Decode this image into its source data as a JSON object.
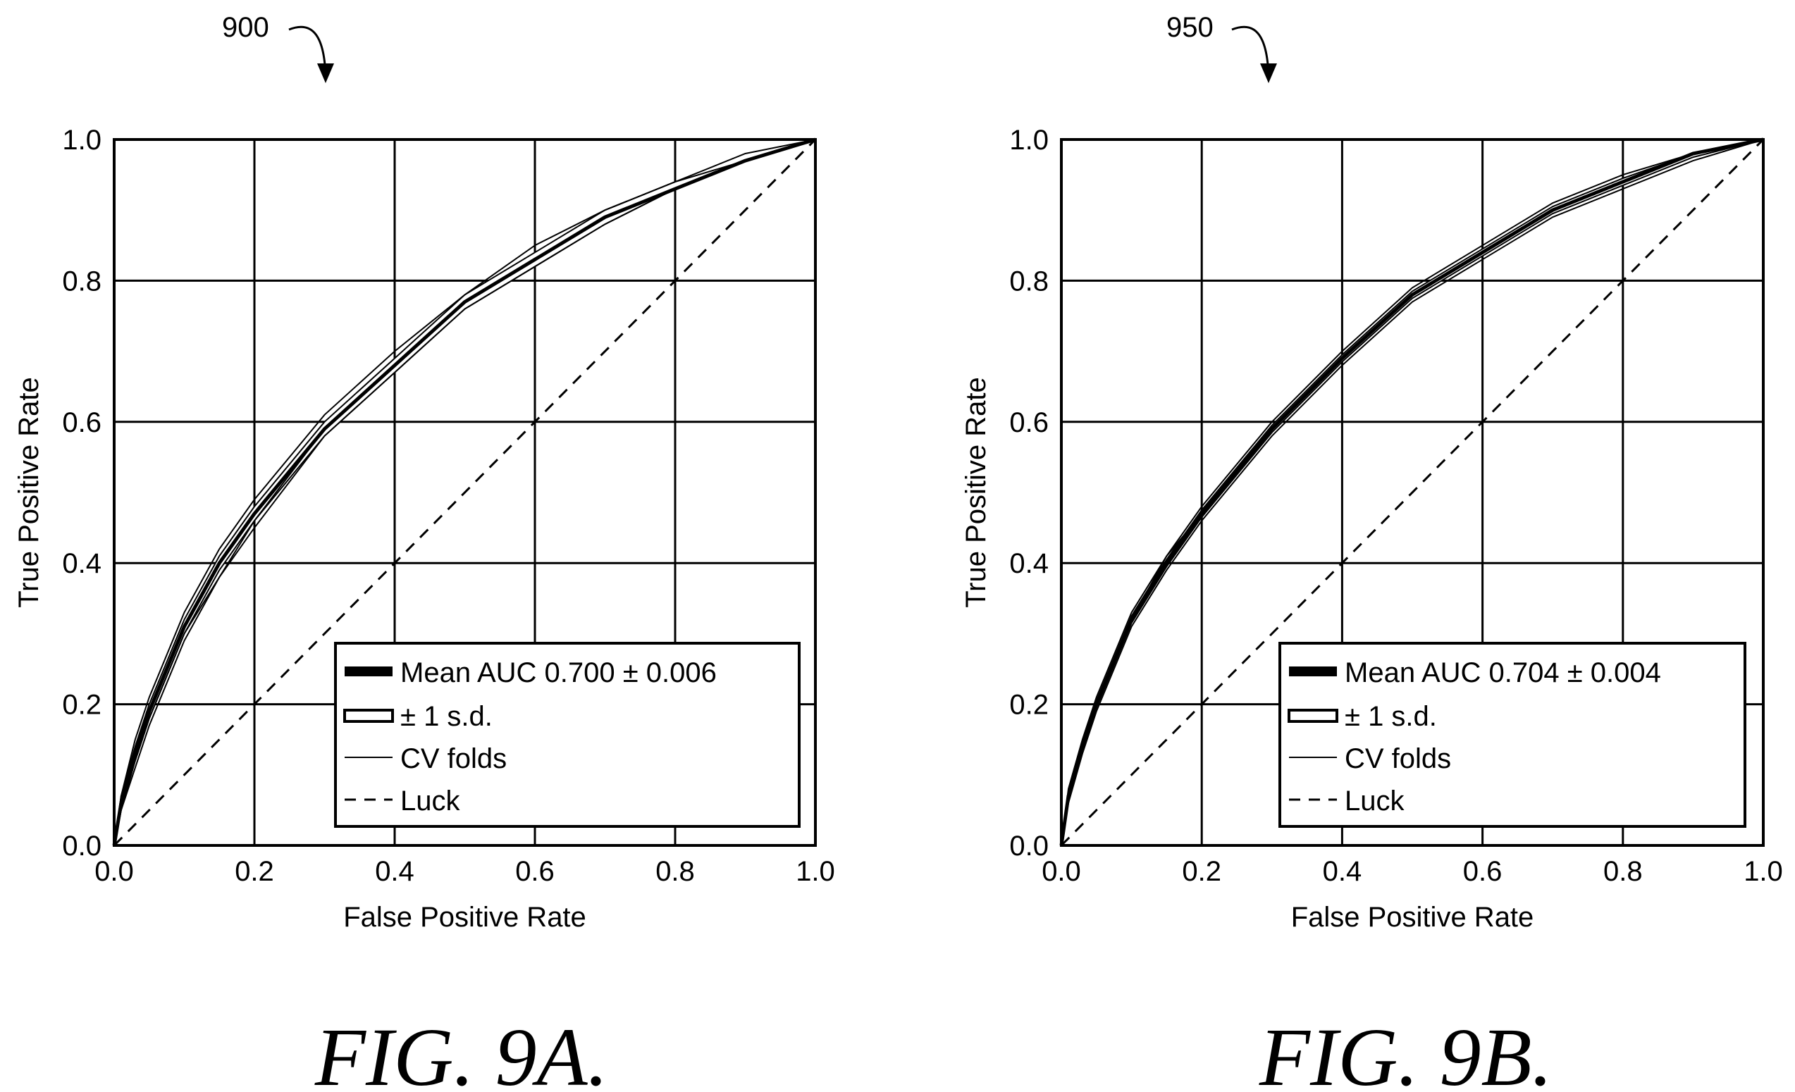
{
  "figures": [
    {
      "reference_numeral": "900",
      "caption": "FIG. 9A.",
      "legend": {
        "mean_label": "Mean AUC 0.700 ± 0.006",
        "sd_label": "± 1 s.d.",
        "folds_label": "CV folds",
        "luck_label": "Luck"
      }
    },
    {
      "reference_numeral": "950",
      "caption": "FIG. 9B.",
      "legend": {
        "mean_label": "Mean AUC 0.704 ± 0.004",
        "sd_label": "± 1 s.d.",
        "folds_label": "CV folds",
        "luck_label": "Luck"
      }
    }
  ],
  "chart_data": [
    {
      "type": "line",
      "title": "",
      "xlabel": "False Positive Rate",
      "ylabel": "True Positive Rate",
      "xlim": [
        0,
        1
      ],
      "ylim": [
        0,
        1
      ],
      "xticks": [
        "0.0",
        "0.2",
        "0.4",
        "0.6",
        "0.8",
        "1.0"
      ],
      "yticks": [
        "0.0",
        "0.2",
        "0.4",
        "0.6",
        "0.8",
        "1.0"
      ],
      "grid": true,
      "legend_position": "bottom-right",
      "line_color": "#000000",
      "series": [
        {
          "name": "Mean AUC 0.700 ± 0.006",
          "style": "thick",
          "x": [
            0.0,
            0.01,
            0.03,
            0.05,
            0.1,
            0.15,
            0.2,
            0.3,
            0.4,
            0.5,
            0.6,
            0.7,
            0.8,
            0.9,
            1.0
          ],
          "y": [
            0.0,
            0.06,
            0.13,
            0.19,
            0.31,
            0.4,
            0.47,
            0.59,
            0.68,
            0.77,
            0.83,
            0.89,
            0.93,
            0.97,
            1.0
          ]
        },
        {
          "name": "± 1 s.d.",
          "style": "band",
          "x": [
            0.0,
            0.01,
            0.03,
            0.05,
            0.1,
            0.15,
            0.2,
            0.3,
            0.4,
            0.5,
            0.6,
            0.7,
            0.8,
            0.9,
            1.0
          ],
          "y_upper": [
            0.0,
            0.07,
            0.14,
            0.2,
            0.32,
            0.41,
            0.48,
            0.6,
            0.69,
            0.78,
            0.84,
            0.9,
            0.94,
            0.97,
            1.0
          ],
          "y_lower": [
            0.0,
            0.05,
            0.12,
            0.18,
            0.3,
            0.39,
            0.46,
            0.58,
            0.67,
            0.76,
            0.82,
            0.88,
            0.93,
            0.97,
            1.0
          ]
        },
        {
          "name": "CV folds",
          "style": "thin",
          "folds": [
            {
              "x": [
                0.0,
                0.01,
                0.03,
                0.05,
                0.1,
                0.15,
                0.2,
                0.3,
                0.4,
                0.5,
                0.6,
                0.7,
                0.8,
                0.9,
                1.0
              ],
              "y": [
                0.0,
                0.07,
                0.15,
                0.21,
                0.33,
                0.42,
                0.49,
                0.61,
                0.7,
                0.78,
                0.85,
                0.9,
                0.94,
                0.98,
                1.0
              ]
            },
            {
              "x": [
                0.0,
                0.01,
                0.03,
                0.05,
                0.1,
                0.15,
                0.2,
                0.3,
                0.4,
                0.5,
                0.6,
                0.7,
                0.8,
                0.9,
                1.0
              ],
              "y": [
                0.0,
                0.05,
                0.11,
                0.17,
                0.29,
                0.38,
                0.45,
                0.58,
                0.67,
                0.76,
                0.82,
                0.88,
                0.93,
                0.97,
                1.0
              ]
            },
            {
              "x": [
                0.0,
                0.01,
                0.03,
                0.05,
                0.1,
                0.15,
                0.2,
                0.3,
                0.4,
                0.5,
                0.6,
                0.7,
                0.8,
                0.9,
                1.0
              ],
              "y": [
                0.0,
                0.06,
                0.12,
                0.18,
                0.3,
                0.38,
                0.46,
                0.59,
                0.68,
                0.77,
                0.83,
                0.89,
                0.93,
                0.97,
                1.0
              ]
            }
          ]
        },
        {
          "name": "Luck",
          "style": "dashed",
          "x": [
            0.0,
            1.0
          ],
          "y": [
            0.0,
            1.0
          ]
        }
      ]
    },
    {
      "type": "line",
      "title": "",
      "xlabel": "False Positive Rate",
      "ylabel": "True Positive Rate",
      "xlim": [
        0,
        1
      ],
      "ylim": [
        0,
        1
      ],
      "xticks": [
        "0.0",
        "0.2",
        "0.4",
        "0.6",
        "0.8",
        "1.0"
      ],
      "yticks": [
        "0.0",
        "0.2",
        "0.4",
        "0.6",
        "0.8",
        "1.0"
      ],
      "grid": true,
      "legend_position": "bottom-right",
      "line_color": "#000000",
      "series": [
        {
          "name": "Mean AUC 0.704 ± 0.004",
          "style": "thick",
          "x": [
            0.0,
            0.01,
            0.03,
            0.05,
            0.1,
            0.15,
            0.2,
            0.3,
            0.4,
            0.5,
            0.6,
            0.7,
            0.8,
            0.9,
            1.0
          ],
          "y": [
            0.0,
            0.07,
            0.14,
            0.2,
            0.32,
            0.4,
            0.47,
            0.59,
            0.69,
            0.78,
            0.84,
            0.9,
            0.94,
            0.98,
            1.0
          ]
        },
        {
          "name": "± 1 s.d.",
          "style": "band",
          "x": [
            0.0,
            0.01,
            0.03,
            0.05,
            0.1,
            0.15,
            0.2,
            0.3,
            0.4,
            0.5,
            0.6,
            0.7,
            0.8,
            0.9,
            1.0
          ],
          "y_upper": [
            0.0,
            0.075,
            0.145,
            0.205,
            0.325,
            0.405,
            0.475,
            0.595,
            0.695,
            0.785,
            0.845,
            0.905,
            0.945,
            0.98,
            1.0
          ],
          "y_lower": [
            0.0,
            0.065,
            0.135,
            0.195,
            0.315,
            0.395,
            0.465,
            0.585,
            0.685,
            0.775,
            0.835,
            0.895,
            0.935,
            0.975,
            1.0
          ]
        },
        {
          "name": "CV folds",
          "style": "thin",
          "folds": [
            {
              "x": [
                0.0,
                0.01,
                0.03,
                0.05,
                0.1,
                0.15,
                0.2,
                0.3,
                0.4,
                0.5,
                0.6,
                0.7,
                0.8,
                0.9,
                1.0
              ],
              "y": [
                0.0,
                0.08,
                0.15,
                0.21,
                0.33,
                0.41,
                0.48,
                0.6,
                0.7,
                0.79,
                0.85,
                0.91,
                0.95,
                0.98,
                1.0
              ]
            },
            {
              "x": [
                0.0,
                0.01,
                0.03,
                0.05,
                0.1,
                0.15,
                0.2,
                0.3,
                0.4,
                0.5,
                0.6,
                0.7,
                0.8,
                0.9,
                1.0
              ],
              "y": [
                0.0,
                0.06,
                0.13,
                0.19,
                0.31,
                0.39,
                0.46,
                0.58,
                0.68,
                0.77,
                0.83,
                0.89,
                0.93,
                0.97,
                1.0
              ]
            },
            {
              "x": [
                0.0,
                0.01,
                0.03,
                0.05,
                0.1,
                0.15,
                0.2,
                0.3,
                0.4,
                0.5,
                0.6,
                0.7,
                0.8,
                0.9,
                1.0
              ],
              "y": [
                0.0,
                0.07,
                0.14,
                0.2,
                0.32,
                0.41,
                0.47,
                0.59,
                0.69,
                0.78,
                0.84,
                0.9,
                0.94,
                0.98,
                1.0
              ]
            }
          ]
        },
        {
          "name": "Luck",
          "style": "dashed",
          "x": [
            0.0,
            1.0
          ],
          "y": [
            0.0,
            1.0
          ]
        }
      ]
    }
  ]
}
